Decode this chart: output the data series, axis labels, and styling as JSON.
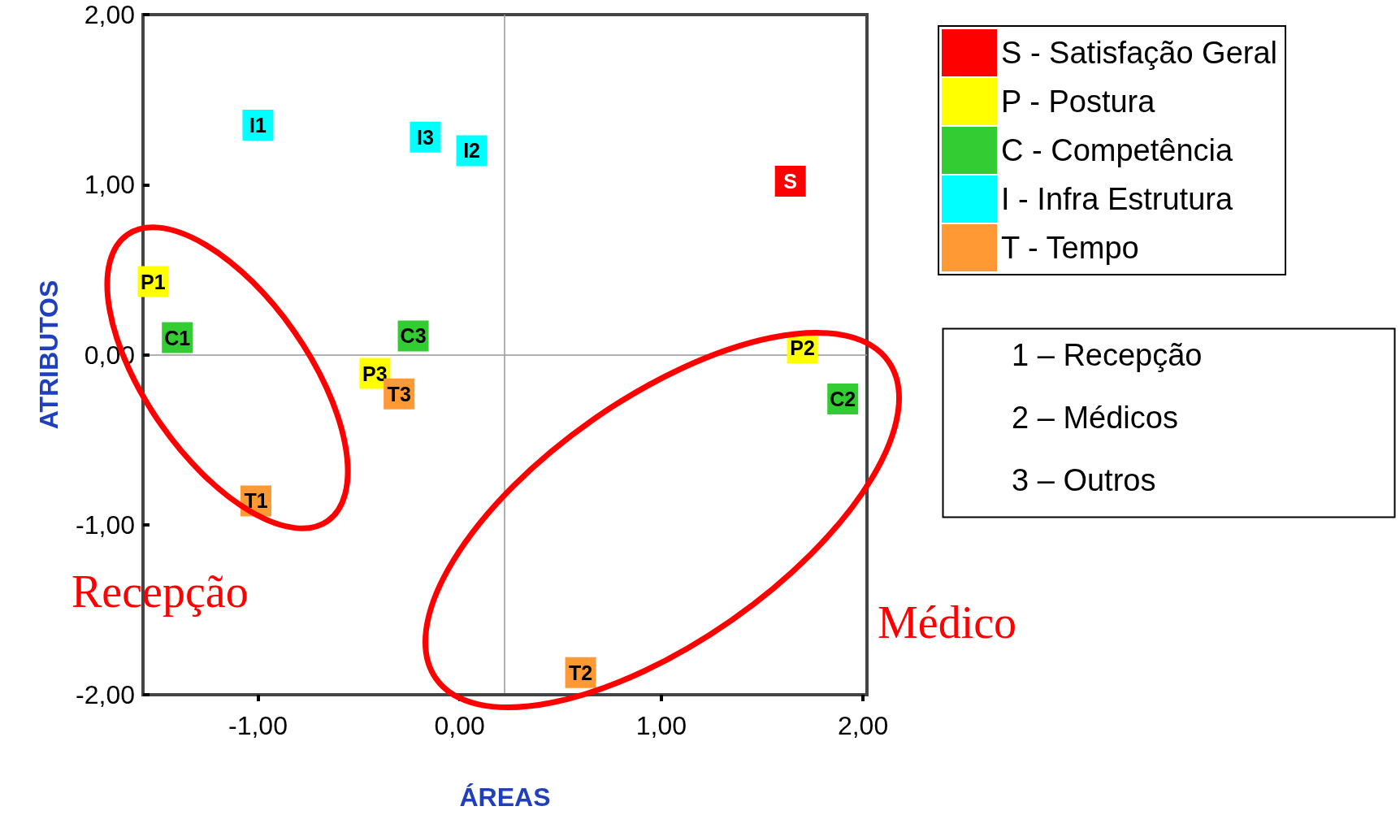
{
  "chart_data": {
    "type": "scatter",
    "xlabel": "ÁREAS",
    "ylabel": "ATRIBUTOS",
    "xlim": [
      -1.57,
      2.02
    ],
    "ylim": [
      -2,
      2
    ],
    "xticks": [
      {
        "value": -1,
        "label": "-1,00"
      },
      {
        "value": 0,
        "label": "0,00"
      },
      {
        "value": 1,
        "label": "1,00"
      },
      {
        "value": 2,
        "label": "2,00"
      }
    ],
    "yticks": [
      {
        "value": -2,
        "label": "-2,00"
      },
      {
        "value": -1,
        "label": "-1,00"
      },
      {
        "value": 0,
        "label": "0,00"
      },
      {
        "value": 1,
        "label": "1,00"
      },
      {
        "value": 2,
        "label": "2,00"
      }
    ],
    "grid": false,
    "legend": "right",
    "marker": "square",
    "ref_lines": [
      {
        "axis": "y",
        "value": 0,
        "color": "#999999"
      },
      {
        "axis": "x",
        "value": 0.22,
        "color": "#999999"
      }
    ],
    "series": [
      {
        "name": "S - Satisfação Geral",
        "color": "#ff0000",
        "x": [
          1.64
        ],
        "values": [
          1.02
        ],
        "value_labels": [
          "S"
        ]
      },
      {
        "name": "P - Postura",
        "color": "#ffff00",
        "x": [
          -1.52,
          1.7,
          -0.42
        ],
        "values": [
          0.43,
          0.04,
          -0.11
        ],
        "value_labels": [
          "P1",
          "P2",
          "P3"
        ]
      },
      {
        "name": "C - Competência",
        "color": "#33cc33",
        "x": [
          -1.4,
          1.9,
          -0.23
        ],
        "values": [
          0.1,
          -0.26,
          0.11
        ],
        "value_labels": [
          "C1",
          "C2",
          "C3"
        ]
      },
      {
        "name": "I - Infra Estrutura",
        "color": "#00ffff",
        "x": [
          -1.0,
          0.06,
          -0.17
        ],
        "values": [
          1.35,
          1.2,
          1.28
        ],
        "value_labels": [
          "I1",
          "I2",
          "I3"
        ]
      },
      {
        "name": "T - Tempo",
        "color": "#ff9933",
        "x": [
          -1.01,
          0.6,
          -0.3
        ],
        "values": [
          -0.86,
          -1.87,
          -0.23
        ],
        "value_labels": [
          "T1",
          "T2",
          "T3"
        ]
      }
    ],
    "annotations": [
      "1 – Recepção",
      "2 – Médicos",
      "3 – Outros",
      "Recepção",
      "Médico"
    ]
  }
}
